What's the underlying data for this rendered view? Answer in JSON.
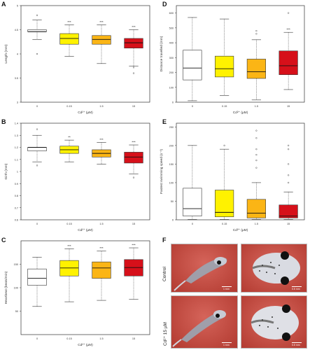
{
  "panels": {
    "a": "A",
    "b": "B",
    "c": "C",
    "d": "D",
    "e": "E",
    "f": "F"
  },
  "chart_data": [
    {
      "id": "A",
      "type": "box",
      "title": "",
      "xlabel": "Cd²⁺ (µM)",
      "ylabel": "Length (mm)",
      "categories": [
        "0",
        "0.15",
        "1.5",
        "15"
      ],
      "ylim": [
        3.0,
        5.0
      ],
      "yticks": [
        3.0,
        3.5,
        4.0,
        4.5,
        5.0
      ],
      "boxes": [
        {
          "min": 4.3,
          "q1": 4.46,
          "median": 4.46,
          "q3": 4.5,
          "max": 4.7,
          "outliers": [
            4.0,
            4.8
          ]
        },
        {
          "min": 3.95,
          "q1": 4.2,
          "median": 4.32,
          "q3": 4.42,
          "max": 4.6,
          "outliers": []
        },
        {
          "min": 3.8,
          "q1": 4.2,
          "median": 4.3,
          "q3": 4.38,
          "max": 4.6,
          "outliers": []
        },
        {
          "min": 3.75,
          "q1": 4.12,
          "median": 4.23,
          "q3": 4.32,
          "max": 4.5,
          "outliers": [
            3.72,
            3.6
          ]
        }
      ],
      "significance": [
        "",
        "***",
        "***",
        "***"
      ]
    },
    {
      "id": "B",
      "type": "box",
      "title": "",
      "xlabel": "Cd²⁺ (µM)",
      "ylabel": "Girth (mm)",
      "categories": [
        "0",
        "0.15",
        "1.5",
        "15"
      ],
      "ylim": [
        0.6,
        1.4
      ],
      "yticks": [
        0.6,
        0.7,
        0.8,
        0.9,
        1.0,
        1.1,
        1.2,
        1.3,
        1.4
      ],
      "boxes": [
        {
          "min": 1.08,
          "q1": 1.17,
          "median": 1.2,
          "q3": 1.2,
          "max": 1.3,
          "outliers": [
            1.05,
            1.35
          ]
        },
        {
          "min": 1.08,
          "q1": 1.15,
          "median": 1.18,
          "q3": 1.21,
          "max": 1.26,
          "outliers": []
        },
        {
          "min": 1.06,
          "q1": 1.12,
          "median": 1.15,
          "q3": 1.18,
          "max": 1.24,
          "outliers": []
        },
        {
          "min": 0.98,
          "q1": 1.07,
          "median": 1.12,
          "q3": 1.16,
          "max": 1.22,
          "outliers": [
            0.95
          ]
        }
      ],
      "significance": [
        "",
        "**",
        "***",
        "***"
      ]
    },
    {
      "id": "C",
      "type": "box",
      "title": "",
      "xlabel": "Cd²⁺ (µM)",
      "ylabel": "Heartbeat (beats/min)",
      "categories": [
        "0",
        "0.15",
        "1.5",
        "15"
      ],
      "ylim": [
        0,
        200
      ],
      "yticks": [
        50,
        100,
        150
      ],
      "boxes": [
        {
          "min": 60,
          "q1": 105,
          "median": 120,
          "q3": 140,
          "max": 165,
          "outliers": []
        },
        {
          "min": 70,
          "q1": 125,
          "median": 142,
          "q3": 158,
          "max": 183,
          "outliers": []
        },
        {
          "min": 73,
          "q1": 120,
          "median": 142,
          "q3": 155,
          "max": 178,
          "outliers": []
        },
        {
          "min": 75,
          "q1": 125,
          "median": 143,
          "q3": 160,
          "max": 185,
          "outliers": []
        }
      ],
      "significance": [
        "",
        "***",
        "***",
        "***"
      ]
    },
    {
      "id": "D",
      "type": "box",
      "title": "",
      "xlabel": "Cd²⁺ (µM)",
      "ylabel": "Distance travelled (mm)",
      "categories": [
        "0",
        "0.15",
        "1.5",
        "15"
      ],
      "ylim": [
        0,
        650
      ],
      "yticks": [
        0,
        100,
        200,
        300,
        400,
        500,
        600
      ],
      "boxes": [
        {
          "min": 10,
          "q1": 150,
          "median": 230,
          "q3": 350,
          "max": 570,
          "outliers": []
        },
        {
          "min": 45,
          "q1": 170,
          "median": 225,
          "q3": 310,
          "max": 560,
          "outliers": []
        },
        {
          "min": 15,
          "q1": 160,
          "median": 205,
          "q3": 290,
          "max": 420,
          "outliers": [
            460,
            480
          ]
        },
        {
          "min": 85,
          "q1": 185,
          "median": 245,
          "q3": 345,
          "max": 470,
          "outliers": [
            600
          ]
        }
      ],
      "significance": [
        "",
        "",
        "",
        "***"
      ]
    },
    {
      "id": "E",
      "type": "box",
      "title": "",
      "xlabel": "Cd²⁺ (µM)",
      "ylabel": "Fastest swimming speed (s⁻¹)",
      "categories": [
        "0",
        "0.15",
        "1.5",
        "15"
      ],
      "ylim": [
        0,
        260
      ],
      "yticks": [
        0,
        50,
        100,
        150,
        200,
        250
      ],
      "boxes": [
        {
          "min": 1,
          "q1": 10,
          "median": 30,
          "q3": 85,
          "max": 200,
          "outliers": []
        },
        {
          "min": 1,
          "q1": 8,
          "median": 20,
          "q3": 80,
          "max": 190,
          "outliers": [
            200
          ]
        },
        {
          "min": 1,
          "q1": 5,
          "median": 18,
          "q3": 55,
          "max": 100,
          "outliers": [
            140,
            160,
            175,
            190,
            220,
            240
          ]
        },
        {
          "min": 1,
          "q1": 5,
          "median": 10,
          "q3": 40,
          "max": 75,
          "outliers": [
            100,
            120,
            150,
            190,
            200
          ]
        }
      ],
      "significance": [
        "",
        "",
        "",
        ""
      ]
    }
  ],
  "photos": {
    "row_labels": [
      "Control",
      "Cd²⁺ 15 µM"
    ],
    "scale_bars": [
      "1 mm",
      "0.5 mm",
      "1 mm",
      "0.5 mm"
    ]
  },
  "colors": {
    "box_fills": [
      "#ffffff",
      "#fff200",
      "#fbb515",
      "#d6101a"
    ],
    "photo_bg": "#c8483e"
  }
}
